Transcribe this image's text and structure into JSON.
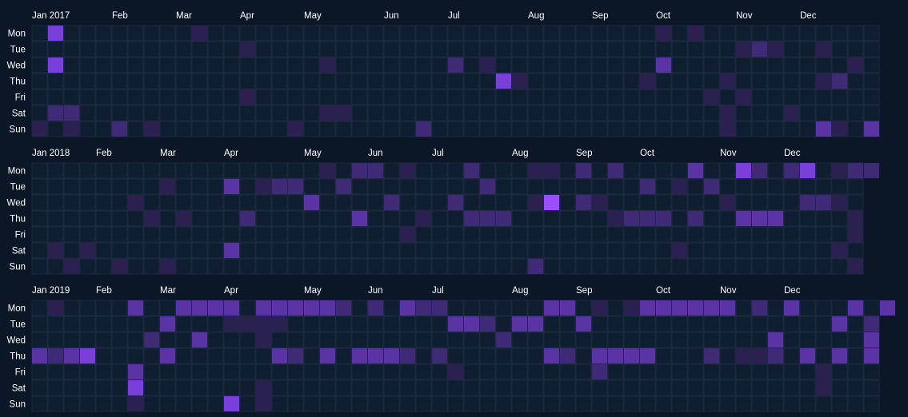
{
  "chart_data": {
    "type": "heatmap",
    "day_labels": [
      "Mon",
      "Tue",
      "Wed",
      "Thu",
      "Fri",
      "Sat",
      "Sun"
    ],
    "colors": {
      "background": "#0b1627",
      "empty_cell": "#0f1d31",
      "cell_border": "#1a2a40",
      "scale": [
        "#0f1d31",
        "#2a2150",
        "#3f2b75",
        "#5b34a4",
        "#7a3fd8",
        "#9b4dff"
      ]
    },
    "levels_max": 5,
    "years": [
      {
        "year": 2017,
        "weeks": 53,
        "month_labels": [
          {
            "label": "Jan 2017",
            "week": 0
          },
          {
            "label": "Feb",
            "week": 5
          },
          {
            "label": "Mar",
            "week": 9
          },
          {
            "label": "Apr",
            "week": 13
          },
          {
            "label": "May",
            "week": 17
          },
          {
            "label": "Jun",
            "week": 22
          },
          {
            "label": "Jul",
            "week": 26
          },
          {
            "label": "Aug",
            "week": 31
          },
          {
            "label": "Sep",
            "week": 35
          },
          {
            "label": "Oct",
            "week": 39
          },
          {
            "label": "Nov",
            "week": 44
          },
          {
            "label": "Dec",
            "week": 48
          }
        ],
        "cells": [
          [
            1,
            0,
            4
          ],
          [
            1,
            2,
            4
          ],
          [
            1,
            5,
            2
          ],
          [
            0,
            6,
            1
          ],
          [
            2,
            5,
            2
          ],
          [
            2,
            6,
            1
          ],
          [
            5,
            6,
            2
          ],
          [
            7,
            6,
            1
          ],
          [
            10,
            0,
            1
          ],
          [
            13,
            1,
            1
          ],
          [
            13,
            4,
            1
          ],
          [
            16,
            6,
            1
          ],
          [
            18,
            2,
            1
          ],
          [
            18,
            5,
            1
          ],
          [
            19,
            5,
            1
          ],
          [
            24,
            6,
            2
          ],
          [
            26,
            2,
            2
          ],
          [
            28,
            2,
            1
          ],
          [
            29,
            3,
            4
          ],
          [
            30,
            3,
            1
          ],
          [
            38,
            3,
            1
          ],
          [
            39,
            0,
            1
          ],
          [
            39,
            2,
            3
          ],
          [
            41,
            0,
            1
          ],
          [
            42,
            4,
            1
          ],
          [
            43,
            3,
            1
          ],
          [
            43,
            5,
            1
          ],
          [
            43,
            6,
            1
          ],
          [
            44,
            4,
            1
          ],
          [
            44,
            1,
            1
          ],
          [
            45,
            1,
            2
          ],
          [
            46,
            1,
            1
          ],
          [
            47,
            5,
            1
          ],
          [
            49,
            1,
            1
          ],
          [
            49,
            3,
            1
          ],
          [
            50,
            3,
            2
          ],
          [
            49,
            6,
            3
          ],
          [
            50,
            6,
            1
          ],
          [
            51,
            2,
            1
          ],
          [
            52,
            6,
            3
          ]
        ]
      },
      {
        "year": 2018,
        "weeks": 52,
        "month_labels": [
          {
            "label": "Jan 2018",
            "week": 0
          },
          {
            "label": "Feb",
            "week": 4
          },
          {
            "label": "Mar",
            "week": 8
          },
          {
            "label": "Apr",
            "week": 12
          },
          {
            "label": "May",
            "week": 17
          },
          {
            "label": "Jun",
            "week": 21
          },
          {
            "label": "Jul",
            "week": 25
          },
          {
            "label": "Aug",
            "week": 30
          },
          {
            "label": "Sep",
            "week": 34
          },
          {
            "label": "Oct",
            "week": 38
          },
          {
            "label": "Nov",
            "week": 43
          },
          {
            "label": "Dec",
            "week": 47
          }
        ],
        "cells": [
          [
            1,
            5,
            1
          ],
          [
            2,
            6,
            1
          ],
          [
            3,
            5,
            1
          ],
          [
            5,
            6,
            1
          ],
          [
            6,
            2,
            1
          ],
          [
            7,
            3,
            1
          ],
          [
            8,
            1,
            1
          ],
          [
            8,
            6,
            1
          ],
          [
            9,
            3,
            1
          ],
          [
            12,
            1,
            3
          ],
          [
            12,
            5,
            3
          ],
          [
            13,
            3,
            2
          ],
          [
            14,
            1,
            1
          ],
          [
            15,
            1,
            2
          ],
          [
            16,
            1,
            2
          ],
          [
            17,
            2,
            3
          ],
          [
            18,
            0,
            1
          ],
          [
            19,
            1,
            2
          ],
          [
            20,
            0,
            2
          ],
          [
            20,
            3,
            3
          ],
          [
            21,
            0,
            2
          ],
          [
            22,
            2,
            2
          ],
          [
            23,
            0,
            1
          ],
          [
            23,
            4,
            1
          ],
          [
            24,
            3,
            1
          ],
          [
            26,
            2,
            2
          ],
          [
            27,
            0,
            2
          ],
          [
            27,
            3,
            2
          ],
          [
            28,
            1,
            2
          ],
          [
            28,
            3,
            2
          ],
          [
            29,
            3,
            2
          ],
          [
            31,
            0,
            1
          ],
          [
            31,
            2,
            1
          ],
          [
            31,
            6,
            2
          ],
          [
            32,
            0,
            1
          ],
          [
            32,
            2,
            5
          ],
          [
            34,
            0,
            2
          ],
          [
            34,
            2,
            2
          ],
          [
            35,
            2,
            1
          ],
          [
            36,
            0,
            2
          ],
          [
            36,
            3,
            1
          ],
          [
            37,
            3,
            2
          ],
          [
            38,
            1,
            2
          ],
          [
            38,
            3,
            2
          ],
          [
            39,
            3,
            2
          ],
          [
            40,
            1,
            1
          ],
          [
            40,
            5,
            1
          ],
          [
            41,
            0,
            3
          ],
          [
            41,
            3,
            2
          ],
          [
            42,
            1,
            2
          ],
          [
            43,
            2,
            1
          ],
          [
            44,
            0,
            4
          ],
          [
            44,
            3,
            3
          ],
          [
            45,
            0,
            2
          ],
          [
            45,
            3,
            3
          ],
          [
            46,
            3,
            3
          ],
          [
            47,
            0,
            2
          ],
          [
            48,
            0,
            4
          ],
          [
            48,
            2,
            2
          ],
          [
            49,
            2,
            2
          ],
          [
            50,
            2,
            1
          ],
          [
            50,
            0,
            1
          ],
          [
            50,
            5,
            1
          ],
          [
            51,
            0,
            2
          ],
          [
            51,
            3,
            1
          ],
          [
            51,
            4,
            1
          ],
          [
            51,
            6,
            1
          ],
          [
            52,
            0,
            2
          ]
        ]
      },
      {
        "year": 2019,
        "weeks": 53,
        "month_labels": [
          {
            "label": "Jan 2019",
            "week": 0
          },
          {
            "label": "Feb",
            "week": 4
          },
          {
            "label": "Mar",
            "week": 8
          },
          {
            "label": "Apr",
            "week": 12
          },
          {
            "label": "May",
            "week": 17
          },
          {
            "label": "Jun",
            "week": 21
          },
          {
            "label": "Jul",
            "week": 25
          },
          {
            "label": "Aug",
            "week": 30
          },
          {
            "label": "Sep",
            "week": 34
          },
          {
            "label": "Oct",
            "week": 39
          },
          {
            "label": "Nov",
            "week": 43
          },
          {
            "label": "Dec",
            "week": 47
          }
        ],
        "cells": [
          [
            0,
            3,
            3
          ],
          [
            1,
            0,
            1
          ],
          [
            1,
            3,
            2
          ],
          [
            2,
            3,
            3
          ],
          [
            3,
            3,
            4
          ],
          [
            6,
            4,
            3
          ],
          [
            6,
            5,
            4
          ],
          [
            6,
            0,
            3
          ],
          [
            6,
            6,
            1
          ],
          [
            8,
            1,
            3
          ],
          [
            7,
            2,
            2
          ],
          [
            8,
            3,
            3
          ],
          [
            9,
            0,
            3
          ],
          [
            10,
            0,
            3
          ],
          [
            10,
            2,
            3
          ],
          [
            11,
            0,
            3
          ],
          [
            12,
            0,
            3
          ],
          [
            12,
            6,
            4
          ],
          [
            12,
            1,
            1
          ],
          [
            13,
            1,
            1
          ],
          [
            14,
            1,
            1
          ],
          [
            14,
            0,
            3
          ],
          [
            14,
            2,
            1
          ],
          [
            14,
            5,
            1
          ],
          [
            14,
            6,
            1
          ],
          [
            15,
            0,
            3
          ],
          [
            15,
            1,
            1
          ],
          [
            15,
            3,
            3
          ],
          [
            16,
            0,
            3
          ],
          [
            16,
            3,
            2
          ],
          [
            17,
            0,
            3
          ],
          [
            18,
            0,
            3
          ],
          [
            18,
            3,
            3
          ],
          [
            19,
            0,
            2
          ],
          [
            20,
            3,
            3
          ],
          [
            21,
            0,
            2
          ],
          [
            21,
            3,
            3
          ],
          [
            22,
            3,
            3
          ],
          [
            23,
            0,
            3
          ],
          [
            23,
            3,
            2
          ],
          [
            24,
            0,
            2
          ],
          [
            25,
            0,
            2
          ],
          [
            25,
            3,
            2
          ],
          [
            26,
            1,
            3
          ],
          [
            26,
            4,
            1
          ],
          [
            27,
            1,
            3
          ],
          [
            28,
            1,
            2
          ],
          [
            29,
            2,
            2
          ],
          [
            30,
            1,
            3
          ],
          [
            31,
            1,
            3
          ],
          [
            32,
            0,
            3
          ],
          [
            32,
            3,
            3
          ],
          [
            33,
            0,
            3
          ],
          [
            33,
            3,
            2
          ],
          [
            34,
            1,
            3
          ],
          [
            35,
            0,
            1
          ],
          [
            35,
            3,
            3
          ],
          [
            35,
            4,
            2
          ],
          [
            36,
            3,
            3
          ],
          [
            37,
            0,
            1
          ],
          [
            37,
            3,
            3
          ],
          [
            38,
            0,
            3
          ],
          [
            38,
            3,
            3
          ],
          [
            39,
            0,
            3
          ],
          [
            40,
            0,
            3
          ],
          [
            41,
            0,
            3
          ],
          [
            42,
            0,
            3
          ],
          [
            42,
            3,
            2
          ],
          [
            43,
            0,
            3
          ],
          [
            44,
            3,
            1
          ],
          [
            45,
            0,
            2
          ],
          [
            45,
            3,
            1
          ],
          [
            46,
            3,
            2
          ],
          [
            46,
            2,
            3
          ],
          [
            47,
            0,
            3
          ],
          [
            48,
            3,
            3
          ],
          [
            49,
            4,
            1
          ],
          [
            49,
            5,
            1
          ],
          [
            50,
            1,
            3
          ],
          [
            50,
            3,
            3
          ],
          [
            51,
            0,
            3
          ],
          [
            52,
            1,
            2
          ],
          [
            52,
            2,
            3
          ],
          [
            52,
            3,
            3
          ],
          [
            53,
            0,
            3
          ]
        ]
      }
    ]
  }
}
